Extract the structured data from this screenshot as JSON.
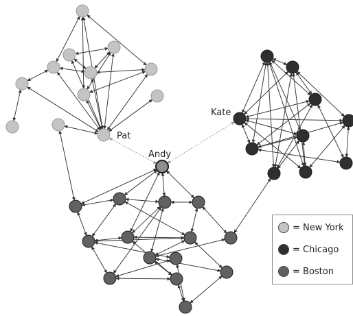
{
  "colors": {
    "new_york": "#c4c4c4",
    "chicago": "#2f2f2f",
    "boston": "#616161",
    "highlight": "#8e8e8e",
    "edge": "#3a3a3a",
    "bridge_edge": "#9a9a9a"
  },
  "labels": {
    "pat": "Pat",
    "kate": "Kate",
    "andy": "Andy"
  },
  "legend": [
    {
      "text": "= New York",
      "group": "new_york"
    },
    {
      "text": "= Chicago",
      "group": "chicago"
    },
    {
      "text": "= Boston",
      "group": "boston"
    }
  ]
}
